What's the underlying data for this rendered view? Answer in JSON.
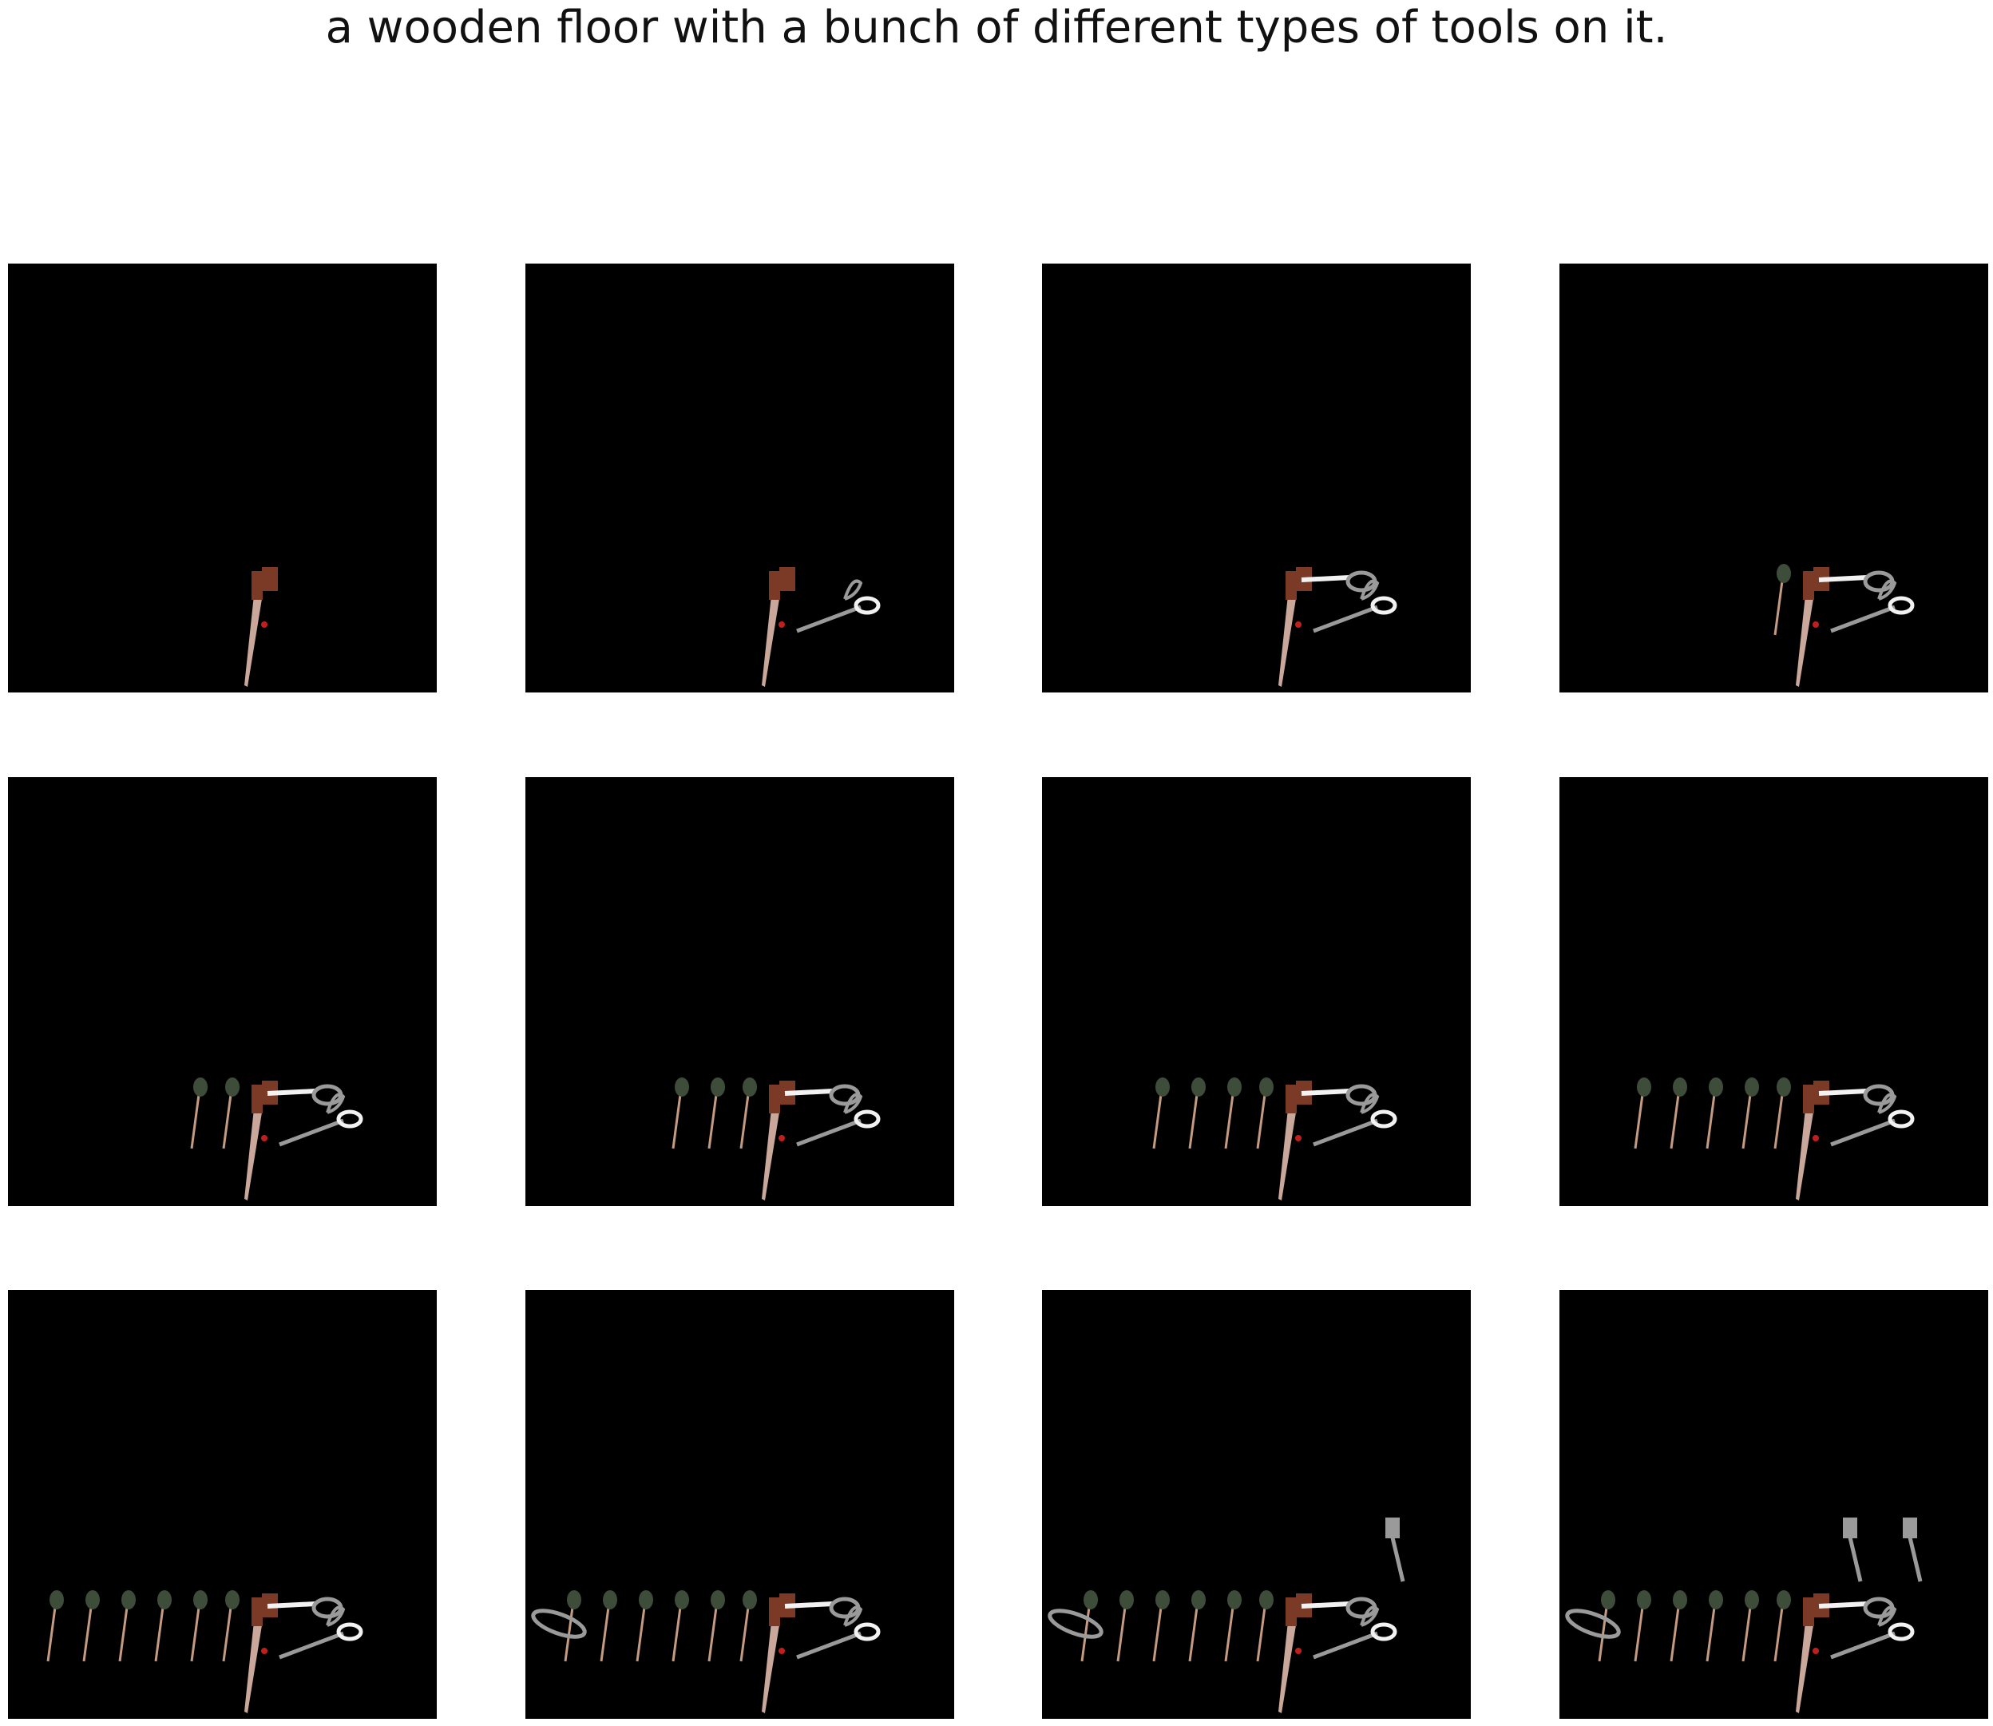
{
  "title": "a wooden floor with a bunch of different types of tools on it.",
  "frames": [
    {
      "index": 1,
      "tools": [
        "knife"
      ]
    },
    {
      "index": 2,
      "tools": [
        "knife",
        "scissors"
      ]
    },
    {
      "index": 3,
      "tools": [
        "knife",
        "scissors",
        "shears"
      ]
    },
    {
      "index": 4,
      "tools": [
        "knife",
        "scissors",
        "shears",
        "brush"
      ]
    },
    {
      "index": 5,
      "tools": [
        "knife",
        "scissors",
        "shears",
        "brush",
        "brush"
      ]
    },
    {
      "index": 6,
      "tools": [
        "knife",
        "scissors",
        "shears",
        "brush",
        "brush",
        "brush"
      ]
    },
    {
      "index": 7,
      "tools": [
        "knife",
        "scissors",
        "shears",
        "brush",
        "brush",
        "brush",
        "brush"
      ]
    },
    {
      "index": 8,
      "tools": [
        "knife",
        "scissors",
        "shears",
        "brush",
        "brush",
        "brush",
        "brush",
        "brush"
      ]
    },
    {
      "index": 9,
      "tools": [
        "knife",
        "scissors",
        "shears",
        "brush",
        "brush",
        "brush",
        "brush",
        "brush",
        "brush"
      ]
    },
    {
      "index": 10,
      "tools": [
        "knife",
        "scissors",
        "shears",
        "brush",
        "brush",
        "brush",
        "brush",
        "brush",
        "brush",
        "pliers"
      ]
    },
    {
      "index": 11,
      "tools": [
        "knife",
        "scissors",
        "shears",
        "brush",
        "brush",
        "brush",
        "brush",
        "brush",
        "brush",
        "pliers",
        "clamp"
      ]
    },
    {
      "index": 12,
      "tools": [
        "knife",
        "scissors",
        "shears",
        "brush",
        "brush",
        "brush",
        "brush",
        "brush",
        "brush",
        "pliers",
        "clamp",
        "clamp"
      ]
    }
  ],
  "colors": {
    "background": "#ffffff",
    "panel": "#000000",
    "knife_blade": "#c9a79a",
    "knife_handle": "#7a3a25",
    "metal": "#9a9a9a",
    "white": "#f2f2f2",
    "brush_head": "#3d4d3a",
    "brush_handle": "#c49a80",
    "accent_red": "#c0201c"
  }
}
